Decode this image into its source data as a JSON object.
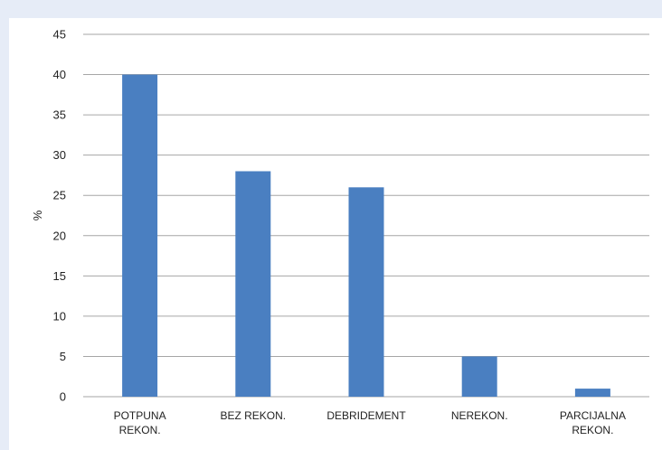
{
  "chart_data": {
    "type": "bar",
    "categories": [
      [
        "POTPUNA",
        "REKON."
      ],
      [
        "BEZ REKON."
      ],
      [
        "DEBRIDEMENT"
      ],
      [
        "NEREKON."
      ],
      [
        "PARCIJALNA",
        "REKON."
      ]
    ],
    "values": [
      40,
      28,
      26,
      5,
      1
    ],
    "ylabel": "%",
    "ylim": [
      0,
      45
    ],
    "yticks": [
      0,
      5,
      10,
      15,
      20,
      25,
      30,
      35,
      40,
      45
    ],
    "grid": true,
    "colors": {
      "bar": "#4a7fc1",
      "grid": "#a6a6a6",
      "background": "#e6ecf7",
      "plot": "#ffffff"
    }
  }
}
